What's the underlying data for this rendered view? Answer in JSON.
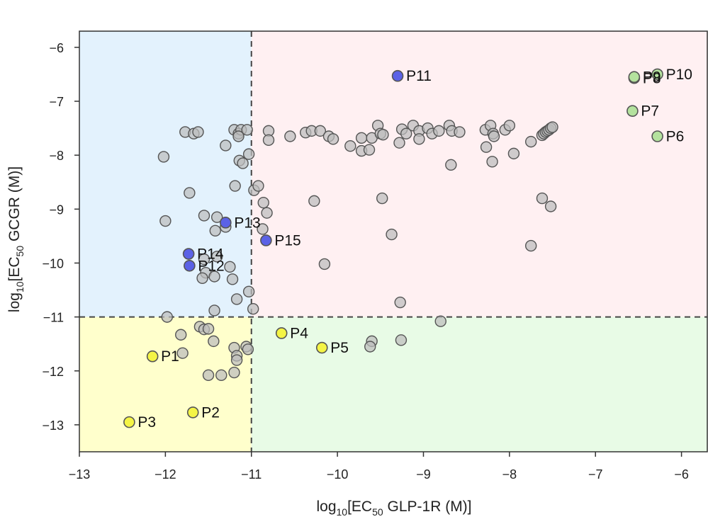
{
  "chart_data": {
    "type": "scatter",
    "title": "",
    "xlabel": {
      "prefix": "log",
      "sub1": "10",
      "mid": "[EC",
      "sub2": "50",
      "suffix": " GLP-1R (M)]"
    },
    "ylabel": {
      "prefix": "log",
      "sub1": "10",
      "mid": "[EC",
      "sub2": "50",
      "suffix": " GCGR (M)]"
    },
    "xlim": [
      -13,
      -5.7
    ],
    "ylim": [
      -13.5,
      -5.7
    ],
    "xticks": [
      -13,
      -12,
      -11,
      -10,
      -9,
      -8,
      -7,
      -6
    ],
    "yticks": [
      -13,
      -12,
      -11,
      -10,
      -9,
      -8,
      -7,
      -6
    ],
    "xtick_labels": [
      "−13",
      "−12",
      "−11",
      "−10",
      "−9",
      "−8",
      "−7",
      "−6"
    ],
    "ytick_labels": [
      "−13",
      "−12",
      "−11",
      "−10",
      "−9",
      "−8",
      "−7",
      "−6"
    ],
    "threshold_x": -11,
    "threshold_y": -11,
    "grid": false,
    "quadrants": [
      {
        "name": "top-left",
        "color": "#e3f2fd"
      },
      {
        "name": "top-right",
        "color": "#fff0f2"
      },
      {
        "name": "bottom-left",
        "color": "#ffffcc"
      },
      {
        "name": "bottom-right",
        "color": "#e8fbe6"
      }
    ],
    "colors": {
      "background_point": "#bcbcbc",
      "point_edge": "#555555",
      "yellow": "#f4f445",
      "green": "#b4e29e",
      "blue": "#5b62e6"
    },
    "background_points": [
      [
        -12.02,
        -8.03
      ],
      [
        -11.77,
        -7.57
      ],
      [
        -11.67,
        -7.6
      ],
      [
        -11.62,
        -7.57
      ],
      [
        -11.72,
        -8.7
      ],
      [
        -12.0,
        -9.22
      ],
      [
        -11.55,
        -9.12
      ],
      [
        -11.4,
        -9.15
      ],
      [
        -11.42,
        -9.4
      ],
      [
        -11.3,
        -9.33
      ],
      [
        -11.3,
        -7.82
      ],
      [
        -11.2,
        -7.53
      ],
      [
        -11.15,
        -7.6
      ],
      [
        -11.12,
        -7.53
      ],
      [
        -11.05,
        -7.53
      ],
      [
        -11.15,
        -7.65
      ],
      [
        -11.14,
        -8.1
      ],
      [
        -11.1,
        -8.15
      ],
      [
        -11.03,
        -7.98
      ],
      [
        -11.19,
        -8.57
      ],
      [
        -11.4,
        -9.88
      ],
      [
        -11.55,
        -9.93
      ],
      [
        -11.53,
        -10.18
      ],
      [
        -11.57,
        -10.28
      ],
      [
        -11.43,
        -10.25
      ],
      [
        -11.25,
        -10.07
      ],
      [
        -11.22,
        -10.3
      ],
      [
        -11.17,
        -10.67
      ],
      [
        -11.43,
        -10.88
      ],
      [
        -11.03,
        -10.53
      ],
      [
        -11.98,
        -11.0
      ],
      [
        -11.6,
        -11.18
      ],
      [
        -11.55,
        -11.23
      ],
      [
        -11.5,
        -11.22
      ],
      [
        -11.44,
        -11.45
      ],
      [
        -11.82,
        -11.33
      ],
      [
        -11.8,
        -11.67
      ],
      [
        -11.2,
        -11.57
      ],
      [
        -11.17,
        -11.72
      ],
      [
        -11.17,
        -11.8
      ],
      [
        -11.06,
        -11.55
      ],
      [
        -11.04,
        -11.6
      ],
      [
        -11.5,
        -12.08
      ],
      [
        -11.35,
        -12.08
      ],
      [
        -11.2,
        -12.03
      ],
      [
        -10.98,
        -10.85
      ],
      [
        -10.97,
        -8.65
      ],
      [
        -10.92,
        -8.57
      ],
      [
        -10.8,
        -7.55
      ],
      [
        -10.8,
        -7.72
      ],
      [
        -10.55,
        -7.65
      ],
      [
        -10.37,
        -7.58
      ],
      [
        -10.3,
        -7.55
      ],
      [
        -10.2,
        -7.55
      ],
      [
        -10.1,
        -7.65
      ],
      [
        -10.05,
        -7.7
      ],
      [
        -9.85,
        -7.83
      ],
      [
        -9.72,
        -7.68
      ],
      [
        -9.72,
        -7.92
      ],
      [
        -9.63,
        -7.9
      ],
      [
        -9.6,
        -7.68
      ],
      [
        -9.53,
        -7.45
      ],
      [
        -9.5,
        -7.6
      ],
      [
        -9.47,
        -7.62
      ],
      [
        -9.25,
        -7.52
      ],
      [
        -9.2,
        -7.6
      ],
      [
        -9.12,
        -7.45
      ],
      [
        -9.05,
        -7.55
      ],
      [
        -9.05,
        -7.7
      ],
      [
        -8.95,
        -7.5
      ],
      [
        -8.9,
        -7.6
      ],
      [
        -8.82,
        -7.55
      ],
      [
        -8.7,
        -7.45
      ],
      [
        -8.67,
        -7.55
      ],
      [
        -8.58,
        -7.57
      ],
      [
        -8.28,
        -7.53
      ],
      [
        -8.22,
        -7.45
      ],
      [
        -8.19,
        -7.6
      ],
      [
        -8.18,
        -7.65
      ],
      [
        -8.05,
        -7.53
      ],
      [
        -8.0,
        -7.45
      ],
      [
        -7.95,
        -7.97
      ],
      [
        -8.27,
        -7.85
      ],
      [
        -8.2,
        -8.12
      ],
      [
        -8.68,
        -8.18
      ],
      [
        -7.75,
        -7.75
      ],
      [
        -7.62,
        -7.63
      ],
      [
        -7.6,
        -7.6
      ],
      [
        -7.58,
        -7.57
      ],
      [
        -7.56,
        -7.55
      ],
      [
        -7.54,
        -7.53
      ],
      [
        -7.52,
        -7.5
      ],
      [
        -7.5,
        -7.48
      ],
      [
        -9.28,
        -7.77
      ],
      [
        -10.86,
        -8.88
      ],
      [
        -10.82,
        -9.07
      ],
      [
        -10.27,
        -8.85
      ],
      [
        -9.48,
        -8.8
      ],
      [
        -10.87,
        -9.37
      ],
      [
        -9.37,
        -9.47
      ],
      [
        -7.62,
        -8.8
      ],
      [
        -7.52,
        -8.95
      ],
      [
        -7.75,
        -9.68
      ],
      [
        -10.15,
        -10.02
      ],
      [
        -9.27,
        -10.73
      ],
      [
        -8.8,
        -11.08
      ],
      [
        -9.26,
        -11.43
      ],
      [
        -9.6,
        -11.45
      ],
      [
        -9.62,
        -11.55
      ]
    ],
    "labeled_points": [
      {
        "label": "P1",
        "x": -12.15,
        "y": -11.73,
        "color": "yellow"
      },
      {
        "label": "P2",
        "x": -11.68,
        "y": -12.77,
        "color": "yellow"
      },
      {
        "label": "P3",
        "x": -12.42,
        "y": -12.95,
        "color": "yellow"
      },
      {
        "label": "P4",
        "x": -10.65,
        "y": -11.3,
        "color": "yellow"
      },
      {
        "label": "P5",
        "x": -10.18,
        "y": -11.57,
        "color": "yellow"
      },
      {
        "label": "P6",
        "x": -6.28,
        "y": -7.65,
        "color": "green"
      },
      {
        "label": "P7",
        "x": -6.57,
        "y": -7.18,
        "color": "green"
      },
      {
        "label": "P8",
        "x": -6.55,
        "y": -6.57,
        "color": "green"
      },
      {
        "label": "P9",
        "x": -6.55,
        "y": -6.55,
        "color": "green"
      },
      {
        "label": "P10",
        "x": -6.28,
        "y": -6.5,
        "color": "green"
      },
      {
        "label": "P11",
        "x": -9.3,
        "y": -6.53,
        "color": "blue"
      },
      {
        "label": "P12",
        "x": -11.72,
        "y": -10.05,
        "color": "blue"
      },
      {
        "label": "P13",
        "x": -11.3,
        "y": -9.25,
        "color": "blue"
      },
      {
        "label": "P14",
        "x": -11.73,
        "y": -9.83,
        "color": "blue"
      },
      {
        "label": "P15",
        "x": -10.83,
        "y": -9.58,
        "color": "blue"
      }
    ]
  }
}
